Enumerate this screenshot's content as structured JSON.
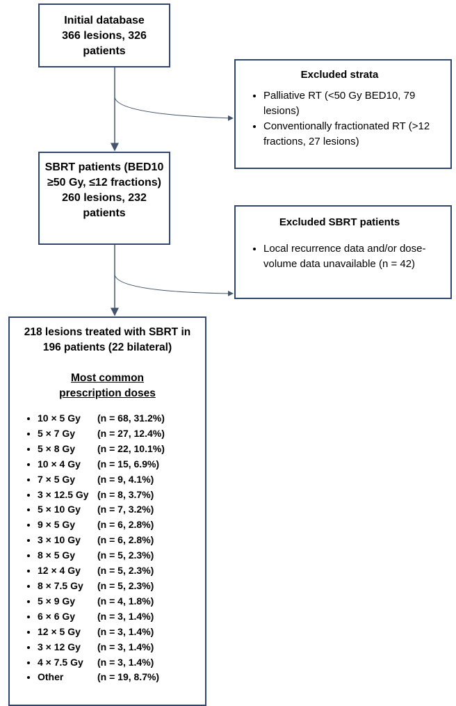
{
  "nodes": [
    {
      "lines": [
        "Initial database",
        "366 lesions, 326 patients"
      ]
    },
    {
      "title": "Excluded strata",
      "items": [
        "Palliative RT (<50 Gy BED10, 79 lesions)",
        "Conventionally fractionated RT (>12 fractions, 27 lesions)"
      ]
    },
    {
      "lines": [
        "SBRT patients (BED10 ≥50 Gy, ≤12 fractions)",
        "260 lesions, 232 patients"
      ]
    },
    {
      "title": "Excluded SBRT patients",
      "items": [
        "Local recurrence data and/or dose-volume data unavailable (n = 42)"
      ]
    },
    {
      "title": "218 lesions treated with SBRT in 196 patients (22 bilateral)",
      "subtitle": "Most common prescription doses",
      "doses": [
        {
          "dose": "10 × 5 Gy",
          "detail": "(n = 68, 31.2%)"
        },
        {
          "dose": "5 × 7 Gy",
          "detail": "(n = 27, 12.4%)"
        },
        {
          "dose": "5 × 8 Gy",
          "detail": "(n = 22, 10.1%)"
        },
        {
          "dose": "10 × 4 Gy",
          "detail": "(n = 15, 6.9%)"
        },
        {
          "dose": "7 × 5 Gy",
          "detail": "(n = 9, 4.1%)"
        },
        {
          "dose": "3 × 12.5 Gy",
          "detail": "(n = 8, 3.7%)"
        },
        {
          "dose": "5 × 10 Gy",
          "detail": "(n = 7, 3.2%)"
        },
        {
          "dose": "9 × 5 Gy",
          "detail": "(n = 6, 2.8%)"
        },
        {
          "dose": "3 × 10 Gy",
          "detail": "(n = 6, 2.8%)"
        },
        {
          "dose": "8 × 5 Gy",
          "detail": "(n = 5, 2.3%)"
        },
        {
          "dose": "12 × 4 Gy",
          "detail": "(n = 5, 2.3%)"
        },
        {
          "dose": "8 × 7.5 Gy",
          "detail": "(n = 5, 2.3%)"
        },
        {
          "dose": "5 × 9 Gy",
          "detail": "(n = 4, 1.8%)"
        },
        {
          "dose": "6 × 6 Gy",
          "detail": "(n = 3, 1.4%)"
        },
        {
          "dose": "12 × 5 Gy",
          "detail": "(n = 3, 1.4%)"
        },
        {
          "dose": "3 × 12 Gy",
          "detail": "(n = 3, 1.4%)"
        },
        {
          "dose": "4 × 7.5 Gy",
          "detail": "(n = 3, 1.4%)"
        },
        {
          "dose": "Other",
          "detail": "(n = 19, 8.7%)"
        }
      ]
    }
  ]
}
